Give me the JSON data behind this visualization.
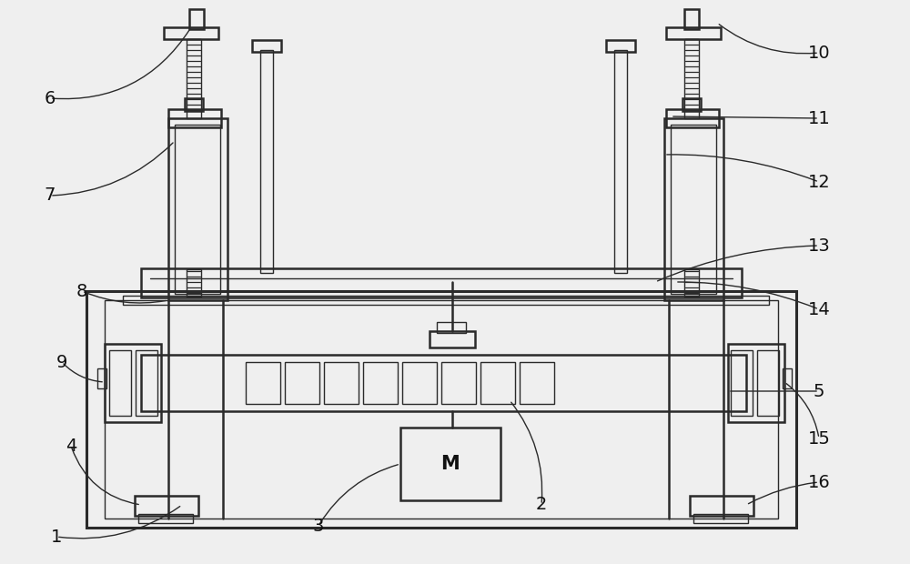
{
  "bg_color": "#efefef",
  "line_color": "#2a2a2a",
  "lw_main": 1.8,
  "lw_thin": 1.0,
  "lw_thick": 2.2,
  "fig_w": 10.0,
  "fig_h": 6.2,
  "dpi": 100
}
